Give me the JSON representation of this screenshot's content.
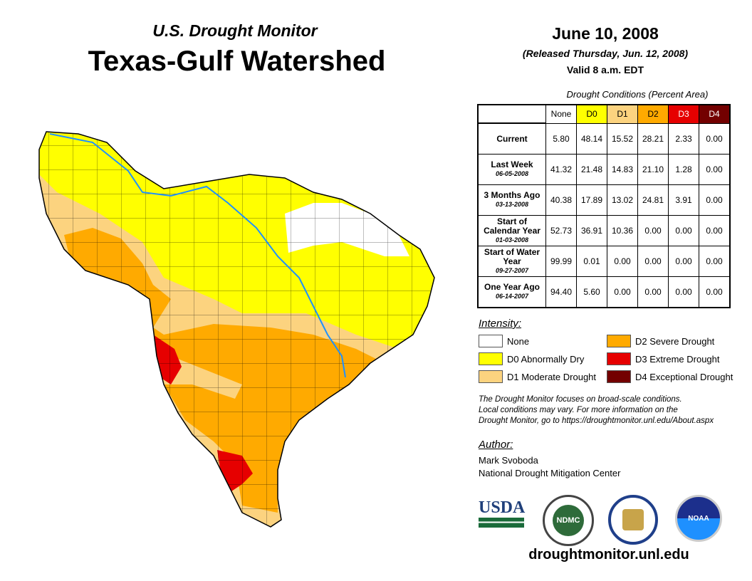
{
  "header": {
    "subtitle": "U.S. Drought Monitor",
    "title": "Texas-Gulf Watershed"
  },
  "date": {
    "main": "June 10, 2008",
    "released": "(Released Thursday, Jun. 12, 2008)",
    "valid": "Valid 8 a.m. EDT"
  },
  "table": {
    "caption": "Drought Conditions (Percent Area)",
    "columns": [
      "None",
      "D0",
      "D1",
      "D2",
      "D3",
      "D4"
    ],
    "column_colors": [
      "#ffffff",
      "#ffff00",
      "#fcd37f",
      "#ffaa00",
      "#e60000",
      "#730000"
    ],
    "rows": [
      {
        "label": "Current",
        "date": "",
        "values": [
          "5.80",
          "48.14",
          "15.52",
          "28.21",
          "2.33",
          "0.00"
        ]
      },
      {
        "label": "Last Week",
        "date": "06-05-2008",
        "values": [
          "41.32",
          "21.48",
          "14.83",
          "21.10",
          "1.28",
          "0.00"
        ]
      },
      {
        "label": "3 Months Ago",
        "date": "03-13-2008",
        "values": [
          "40.38",
          "17.89",
          "13.02",
          "24.81",
          "3.91",
          "0.00"
        ]
      },
      {
        "label": "Start of Calendar Year",
        "date": "01-03-2008",
        "values": [
          "52.73",
          "36.91",
          "10.36",
          "0.00",
          "0.00",
          "0.00"
        ]
      },
      {
        "label": "Start of Water Year",
        "date": "09-27-2007",
        "values": [
          "99.99",
          "0.01",
          "0.00",
          "0.00",
          "0.00",
          "0.00"
        ]
      },
      {
        "label": "One Year Ago",
        "date": "06-14-2007",
        "values": [
          "94.40",
          "5.60",
          "0.00",
          "0.00",
          "0.00",
          "0.00"
        ]
      }
    ]
  },
  "legend": {
    "title": "Intensity:",
    "items": [
      {
        "label": "None",
        "color": "#ffffff"
      },
      {
        "label": "D0 Abnormally Dry",
        "color": "#ffff00"
      },
      {
        "label": "D1 Moderate Drought",
        "color": "#fcd37f"
      },
      {
        "label": "D2 Severe Drought",
        "color": "#ffaa00"
      },
      {
        "label": "D3 Extreme Drought",
        "color": "#e60000"
      },
      {
        "label": "D4 Exceptional Drought",
        "color": "#730000"
      }
    ]
  },
  "note": [
    "The Drought Monitor focuses on broad-scale conditions.",
    "Local conditions may vary. For more information on the",
    "Drought Monitor, go to https://droughtmonitor.unl.edu/About.aspx"
  ],
  "author": {
    "title": "Author:",
    "name": "Mark Svoboda",
    "org": "National Drought Mitigation Center"
  },
  "logos": {
    "usda": "USDA",
    "ndmc": "NDMC",
    "noaa": "NOAA"
  },
  "footer": {
    "url": "droughtmonitor.unl.edu"
  }
}
